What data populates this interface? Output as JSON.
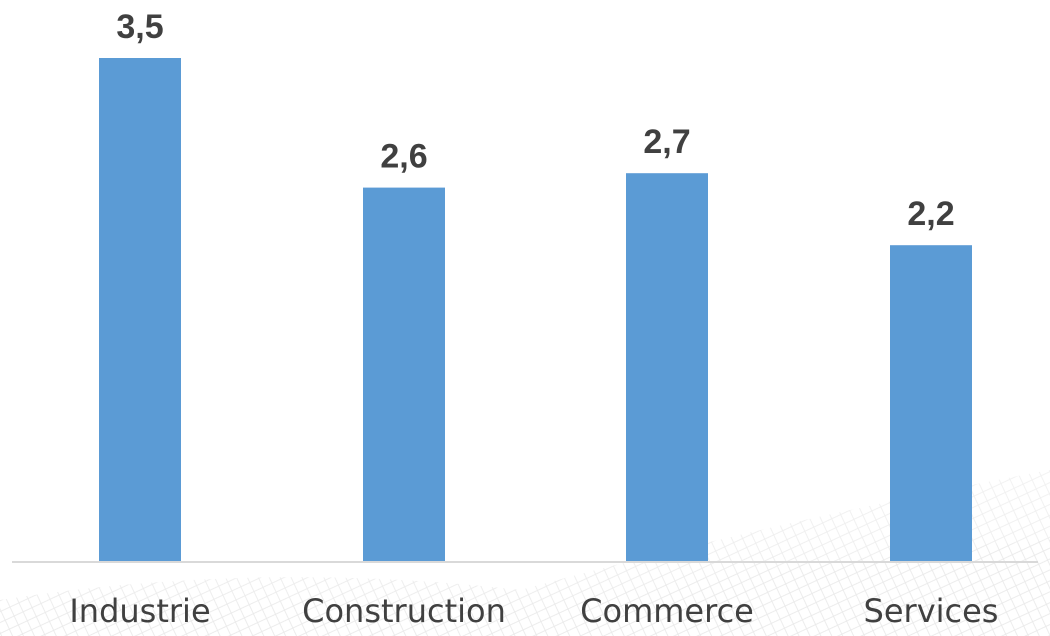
{
  "chart_data": {
    "type": "bar",
    "categories": [
      "Industrie",
      "Construction",
      "Commerce",
      "Services"
    ],
    "values": [
      3.5,
      2.6,
      2.7,
      2.2
    ],
    "value_labels": [
      "3,5",
      "2,6",
      "2,7",
      "2,2"
    ],
    "title": "",
    "xlabel": "",
    "ylabel": "",
    "ylim": [
      0,
      3.5
    ],
    "grid": false,
    "legend": "none",
    "bar_color": "#5b9bd5",
    "axis_color": "#d9d9d9",
    "text_color": "#404040"
  }
}
